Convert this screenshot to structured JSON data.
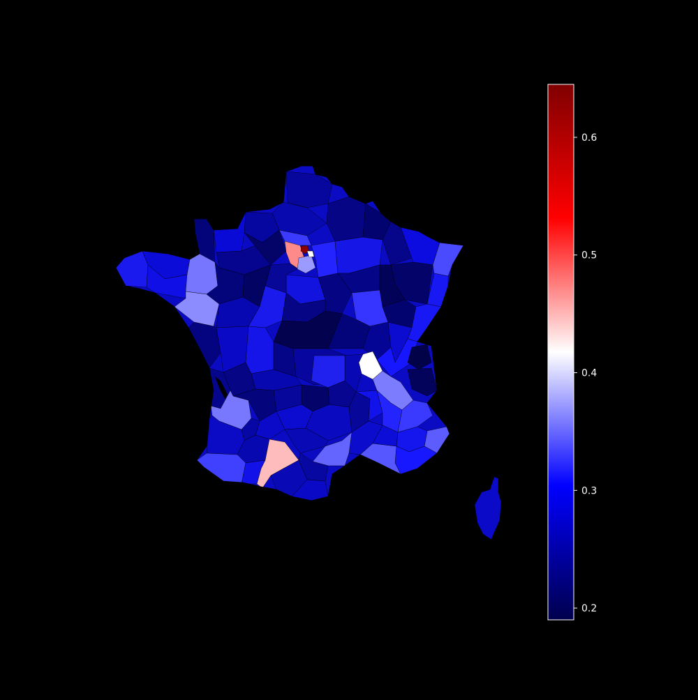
{
  "figure": {
    "background": "#000000",
    "colormap": "seismic"
  },
  "colorbar": {
    "min": 0.19,
    "max": 0.645,
    "ticks": [
      {
        "value": 0.2,
        "label": "0.2"
      },
      {
        "value": 0.3,
        "label": "0.3"
      },
      {
        "value": 0.4,
        "label": "0.4"
      },
      {
        "value": 0.5,
        "label": "0.5"
      },
      {
        "value": 0.6,
        "label": "0.6"
      }
    ],
    "stops": [
      "#00004d",
      "#0000ff",
      "#ffffff",
      "#ff0000",
      "#800000"
    ],
    "frame_color": "#ffffff",
    "text_color": "#ffffff"
  },
  "map": {
    "subject": "France departments choropleth",
    "notable_regions": [
      {
        "region": "paris-dept",
        "value": 0.645
      },
      {
        "region": "hauts-de-seine",
        "value": 0.5
      },
      {
        "region": "haute-garonne",
        "value": 0.45
      },
      {
        "region": "rhone",
        "value": 0.4
      },
      {
        "region": "gironde",
        "value": 0.36
      },
      {
        "region": "isere",
        "value": 0.35
      },
      {
        "region": "herault",
        "value": 0.34
      },
      {
        "region": "ille-et-vilaine",
        "value": 0.35
      },
      {
        "region": "loire-atlantique",
        "value": 0.36
      },
      {
        "region": "haute-savoie",
        "value": 0.2
      }
    ]
  }
}
